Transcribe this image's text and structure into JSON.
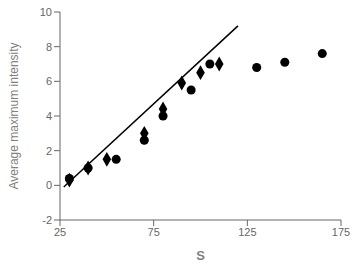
{
  "chart_data": {
    "type": "scatter",
    "xlabel": "S",
    "ylabel": "Average maximum intensity",
    "xlim": [
      25,
      175
    ],
    "ylim": [
      -2,
      10
    ],
    "xticks": [
      25,
      75,
      125,
      175
    ],
    "yticks": [
      -2,
      0,
      2,
      4,
      6,
      8,
      10
    ],
    "grid": false,
    "series": [
      {
        "type": "line",
        "color": "#000000",
        "x": [
          27,
          120
        ],
        "values": [
          -0.1,
          9.2
        ]
      },
      {
        "type": "scatter",
        "marker": "diamond",
        "color": "#000000",
        "x": [
          30,
          40,
          50,
          70,
          80,
          90,
          100,
          110
        ],
        "values": [
          0.3,
          1.0,
          1.5,
          3.0,
          4.4,
          5.9,
          6.5,
          7.0
        ]
      },
      {
        "type": "scatter",
        "marker": "circle",
        "color": "#000000",
        "x": [
          30,
          40,
          55,
          70,
          80,
          95,
          105,
          130,
          145,
          165
        ],
        "values": [
          0.4,
          1.0,
          1.5,
          2.6,
          4.0,
          5.5,
          7.0,
          6.8,
          7.1,
          7.6
        ]
      }
    ]
  }
}
